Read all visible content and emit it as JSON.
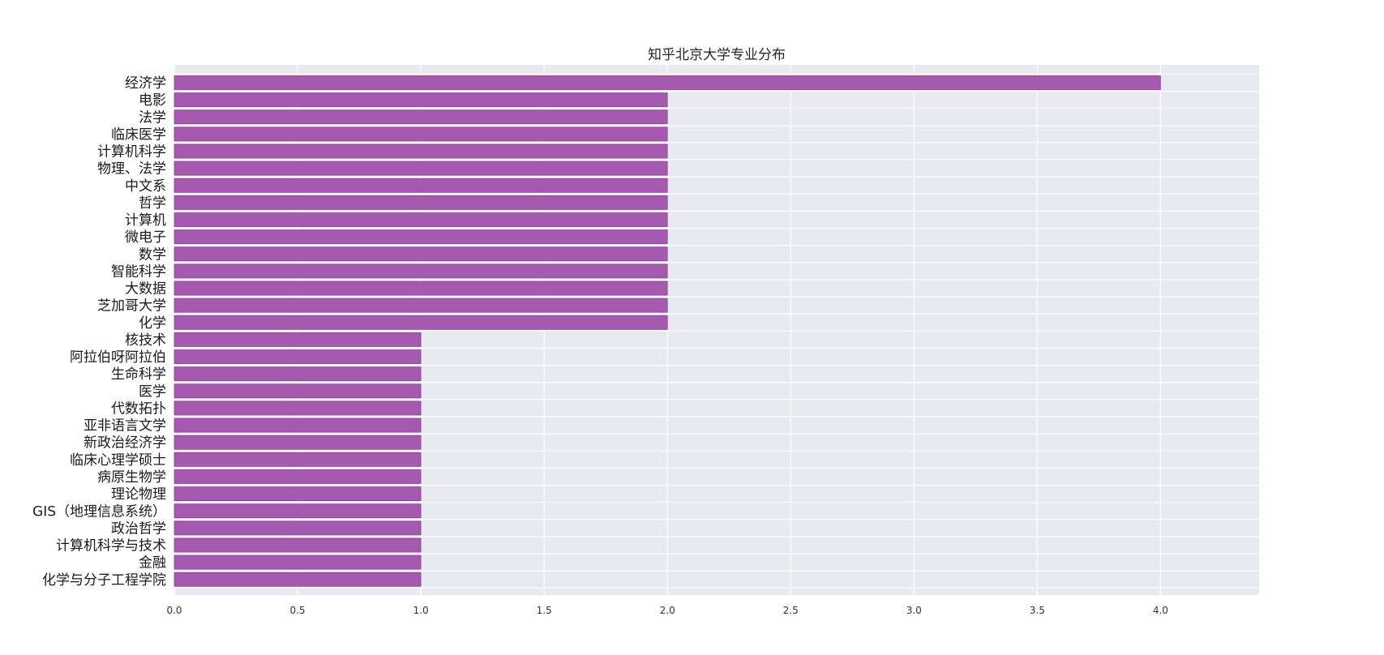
{
  "chart_data": {
    "type": "bar",
    "orientation": "horizontal",
    "title": "知乎北京大学专业分布",
    "xlabel": "",
    "ylabel": "",
    "xlim": [
      0,
      4.4
    ],
    "xticks": [
      "0.0",
      "0.5",
      "1.0",
      "1.5",
      "2.0",
      "2.5",
      "3.0",
      "3.5",
      "4.0"
    ],
    "grid": true,
    "colors": {
      "bar": "#a55ab0",
      "bar_edge": "#8e3f99",
      "plot_bg": "#e9e9f1",
      "grid": "#ffffff"
    },
    "categories": [
      "经济学",
      "电影",
      "法学",
      "临床医学",
      "计算机科学",
      "物理、法学",
      "中文系",
      "哲学",
      "计算机",
      "微电子",
      "数学",
      "智能科学",
      "大数据",
      "芝加哥大学",
      "化学",
      "核技术",
      "阿拉伯呀阿拉伯",
      "生命科学",
      "医学",
      "代数拓扑",
      "亚非语言文学",
      "新政治经济学",
      "临床心理学硕士",
      "病原生物学",
      "理论物理",
      "GIS（地理信息系统）",
      "政治哲学",
      "计算机科学与技术",
      "金融",
      "化学与分子工程学院"
    ],
    "values": [
      4,
      2,
      2,
      2,
      2,
      2,
      2,
      2,
      2,
      2,
      2,
      2,
      2,
      2,
      2,
      1,
      1,
      1,
      1,
      1,
      1,
      1,
      1,
      1,
      1,
      1,
      1,
      1,
      1,
      1
    ]
  }
}
